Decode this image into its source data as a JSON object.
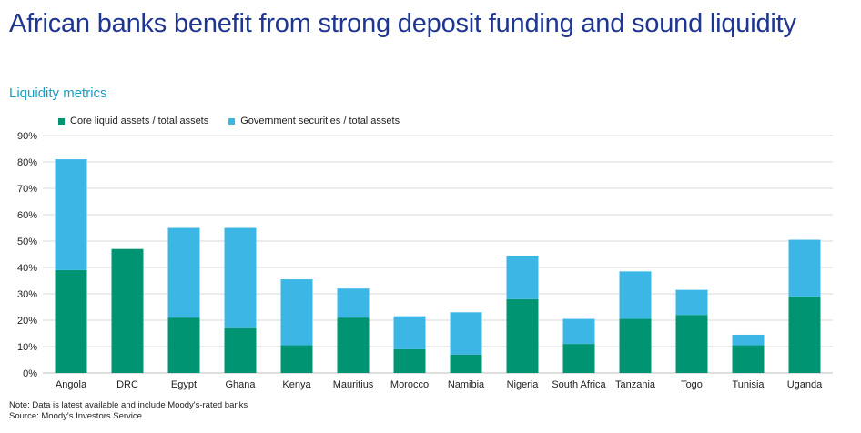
{
  "title": "African banks benefit from strong deposit funding and sound liquidity",
  "subtitle": "Liquidity metrics",
  "note": "Note: Data is latest available and include Moody's-rated banks",
  "source": "Source: Moody's Investors Service",
  "chart_data": {
    "type": "bar",
    "stacked": true,
    "categories": [
      "Angola",
      "DRC",
      "Egypt",
      "Ghana",
      "Kenya",
      "Mauritius",
      "Morocco",
      "Namibia",
      "Nigeria",
      "South Africa",
      "Tanzania",
      "Togo",
      "Tunisia",
      "Uganda"
    ],
    "series": [
      {
        "name": "Core liquid assets / total assets",
        "color": "#009473",
        "values": [
          39,
          47,
          21,
          17,
          10.5,
          21,
          9,
          7,
          28,
          11,
          20.5,
          22,
          10.5,
          29
        ]
      },
      {
        "name": "Government securities / total assets",
        "color": "#3cb6e5",
        "values": [
          42,
          0,
          34,
          38,
          25,
          11,
          12.5,
          16,
          16.5,
          9.5,
          18,
          9.5,
          4,
          21.5
        ]
      }
    ],
    "ylim": [
      0,
      90
    ],
    "yticks": [
      "0%",
      "10%",
      "20%",
      "30%",
      "40%",
      "50%",
      "60%",
      "70%",
      "80%",
      "90%"
    ],
    "grid": true,
    "legend": "top-left"
  }
}
